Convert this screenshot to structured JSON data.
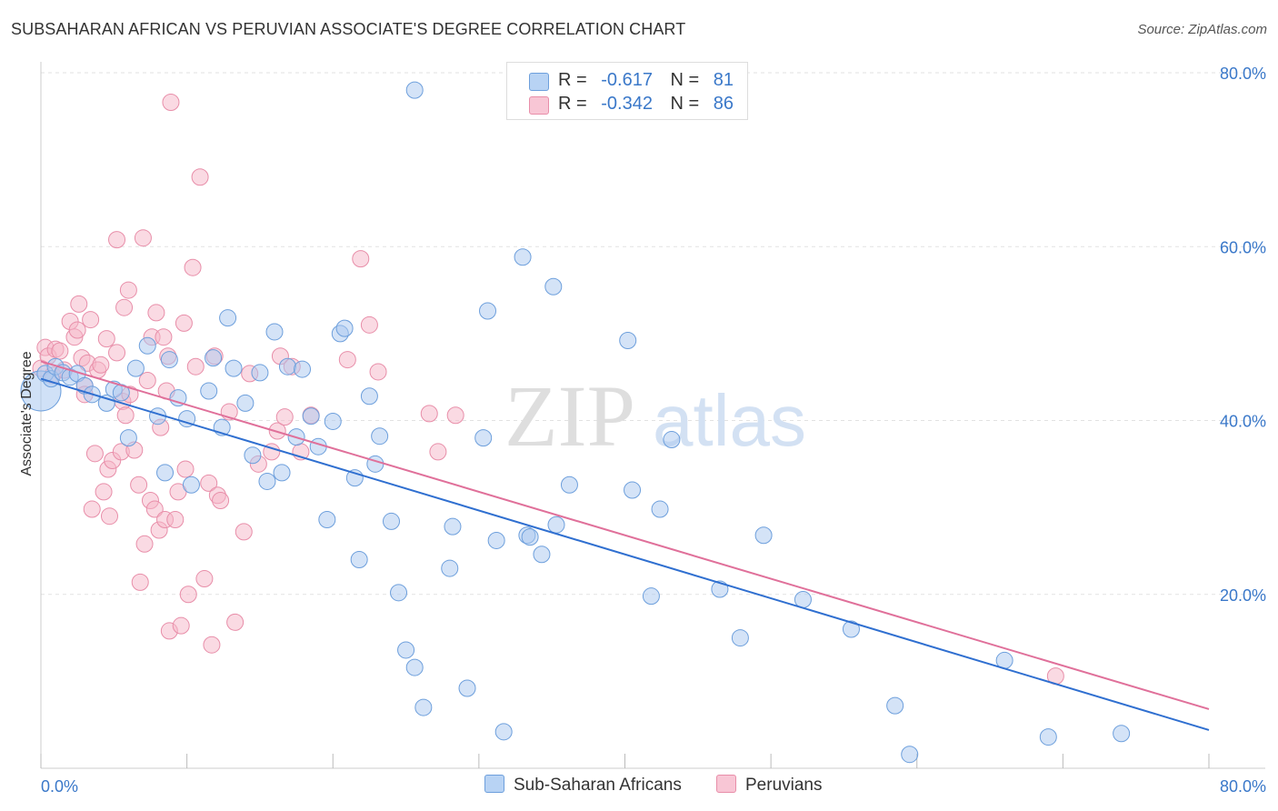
{
  "title": "SUBSAHARAN AFRICAN VS PERUVIAN ASSOCIATE'S DEGREE CORRELATION CHART",
  "source": "Source: ZipAtlas.com",
  "watermark": {
    "zip": "ZIP",
    "atlas": "atlas"
  },
  "legend": {
    "r_label": "R =",
    "n_label": "N =",
    "rows": [
      {
        "r": "-0.617",
        "n": "81",
        "color": "#a9c8f0"
      },
      {
        "r": "-0.342",
        "n": "86",
        "color": "#f6b6c8"
      }
    ]
  },
  "bottom_legend": [
    {
      "label": "Sub-Saharan Africans",
      "color": "#a9c8f0"
    },
    {
      "label": "Peruvians",
      "color": "#f6b6c8"
    }
  ],
  "chart_data": {
    "type": "scatter",
    "title": "SUBSAHARAN AFRICAN VS PERUVIAN ASSOCIATE'S DEGREE CORRELATION CHART",
    "xlabel": "",
    "ylabel": "Associate's Degree",
    "xlim": [
      0,
      80
    ],
    "ylim": [
      0,
      80
    ],
    "x_tick_labels": [
      "0.0%",
      "80.0%"
    ],
    "y_tick_labels": [
      "20.0%",
      "40.0%",
      "60.0%",
      "80.0%"
    ],
    "y_ticks": [
      20,
      40,
      60,
      80
    ],
    "grid": "horizontal dashed",
    "legend_position": "top-center",
    "series": [
      {
        "name": "Sub-Saharan Africans",
        "color": "#a9c8f0",
        "stroke": "#6d9fdc",
        "trend_color": "#2f6fd0",
        "trend": {
          "x": [
            0,
            80
          ],
          "y": [
            44.8,
            4.4
          ]
        },
        "points": [
          [
            0,
            43.4
          ],
          [
            0.3,
            45.4
          ],
          [
            0.7,
            44.8
          ],
          [
            1,
            46.2
          ],
          [
            1.5,
            45.5
          ],
          [
            2,
            45.0
          ],
          [
            2.5,
            45.4
          ],
          [
            3,
            44.0
          ],
          [
            3.5,
            43.0
          ],
          [
            4.5,
            42.0
          ],
          [
            5,
            43.6
          ],
          [
            5.5,
            43.2
          ],
          [
            6,
            38.0
          ],
          [
            6.5,
            46.0
          ],
          [
            7.3,
            48.6
          ],
          [
            8,
            40.5
          ],
          [
            8.5,
            34.0
          ],
          [
            8.8,
            47.0
          ],
          [
            9.4,
            42.6
          ],
          [
            10,
            40.2
          ],
          [
            10.3,
            32.6
          ],
          [
            11.5,
            43.4
          ],
          [
            11.8,
            47.2
          ],
          [
            12.4,
            39.2
          ],
          [
            12.8,
            51.8
          ],
          [
            13.2,
            46.0
          ],
          [
            14,
            42.0
          ],
          [
            14.5,
            36.0
          ],
          [
            15,
            45.5
          ],
          [
            15.5,
            33.0
          ],
          [
            16,
            50.2
          ],
          [
            16.5,
            34.0
          ],
          [
            16.9,
            46.2
          ],
          [
            17.5,
            38.1
          ],
          [
            17.9,
            45.9
          ],
          [
            18.5,
            40.5
          ],
          [
            19,
            37.0
          ],
          [
            19.6,
            28.6
          ],
          [
            20,
            39.9
          ],
          [
            20.5,
            50.0
          ],
          [
            20.8,
            50.6
          ],
          [
            21.5,
            33.4
          ],
          [
            21.8,
            24.0
          ],
          [
            22.5,
            42.8
          ],
          [
            22.9,
            35.0
          ],
          [
            23.2,
            38.2
          ],
          [
            24,
            28.4
          ],
          [
            24.5,
            20.2
          ],
          [
            25,
            13.6
          ],
          [
            25.6,
            11.6
          ],
          [
            25.6,
            78.0
          ],
          [
            26.2,
            7.0
          ],
          [
            28,
            23.0
          ],
          [
            28.2,
            27.8
          ],
          [
            29.2,
            9.2
          ],
          [
            30.3,
            38.0
          ],
          [
            30.6,
            52.6
          ],
          [
            31.2,
            26.2
          ],
          [
            31.7,
            4.2
          ],
          [
            33,
            58.8
          ],
          [
            33.3,
            26.8
          ],
          [
            33.5,
            26.6
          ],
          [
            34.3,
            24.6
          ],
          [
            35.1,
            55.4
          ],
          [
            35.3,
            28.0
          ],
          [
            36.2,
            32.6
          ],
          [
            40.2,
            49.2
          ],
          [
            40.5,
            32.0
          ],
          [
            41.8,
            19.8
          ],
          [
            42.4,
            29.8
          ],
          [
            43.2,
            37.8
          ],
          [
            46.5,
            20.6
          ],
          [
            47.9,
            15.0
          ],
          [
            49.5,
            26.8
          ],
          [
            52.2,
            19.4
          ],
          [
            55.5,
            16.0
          ],
          [
            58.5,
            7.2
          ],
          [
            59.5,
            1.6
          ],
          [
            66,
            12.4
          ],
          [
            69,
            3.6
          ],
          [
            74,
            4.0
          ]
        ]
      },
      {
        "name": "Peruvians",
        "color": "#f6b6c8",
        "stroke": "#e88ea9",
        "trend_color": "#e0709a",
        "trend": {
          "x": [
            0,
            80
          ],
          "y": [
            46.8,
            6.8
          ]
        },
        "points": [
          [
            0,
            46.0
          ],
          [
            0.3,
            48.4
          ],
          [
            0.5,
            47.4
          ],
          [
            0.8,
            45.2
          ],
          [
            1,
            48.2
          ],
          [
            1.3,
            48.0
          ],
          [
            1.6,
            45.8
          ],
          [
            2,
            51.4
          ],
          [
            2.3,
            49.6
          ],
          [
            2.5,
            50.4
          ],
          [
            2.6,
            53.4
          ],
          [
            2.8,
            47.2
          ],
          [
            3,
            44.0
          ],
          [
            3,
            43.0
          ],
          [
            3.2,
            46.6
          ],
          [
            3.4,
            51.6
          ],
          [
            3.5,
            29.8
          ],
          [
            3.7,
            36.2
          ],
          [
            3.9,
            45.8
          ],
          [
            4.1,
            46.4
          ],
          [
            4.3,
            31.8
          ],
          [
            4.5,
            49.4
          ],
          [
            4.6,
            34.4
          ],
          [
            4.7,
            29.0
          ],
          [
            4.9,
            35.4
          ],
          [
            5.2,
            60.8
          ],
          [
            5.2,
            47.8
          ],
          [
            5.5,
            36.4
          ],
          [
            5.6,
            42.2
          ],
          [
            5.7,
            53.0
          ],
          [
            5.8,
            40.6
          ],
          [
            6,
            55.0
          ],
          [
            6.1,
            43.0
          ],
          [
            6.4,
            36.6
          ],
          [
            6.7,
            32.6
          ],
          [
            6.8,
            21.4
          ],
          [
            7,
            61.0
          ],
          [
            7.1,
            25.8
          ],
          [
            7.3,
            44.6
          ],
          [
            7.5,
            30.8
          ],
          [
            7.6,
            49.6
          ],
          [
            7.8,
            29.8
          ],
          [
            7.9,
            52.4
          ],
          [
            8.1,
            27.4
          ],
          [
            8.2,
            39.2
          ],
          [
            8.4,
            49.6
          ],
          [
            8.5,
            28.6
          ],
          [
            8.6,
            43.4
          ],
          [
            8.7,
            47.4
          ],
          [
            8.8,
            15.8
          ],
          [
            8.9,
            76.6
          ],
          [
            9.2,
            28.6
          ],
          [
            9.4,
            31.8
          ],
          [
            9.6,
            16.4
          ],
          [
            9.8,
            51.2
          ],
          [
            9.9,
            34.4
          ],
          [
            10.1,
            20.0
          ],
          [
            10.4,
            57.6
          ],
          [
            10.6,
            46.2
          ],
          [
            10.9,
            68.0
          ],
          [
            11.2,
            21.8
          ],
          [
            11.5,
            32.8
          ],
          [
            11.7,
            14.2
          ],
          [
            11.9,
            47.4
          ],
          [
            12.1,
            31.4
          ],
          [
            12.3,
            30.8
          ],
          [
            12.9,
            41.0
          ],
          [
            13.3,
            16.8
          ],
          [
            13.9,
            27.2
          ],
          [
            14.3,
            45.4
          ],
          [
            14.9,
            35.0
          ],
          [
            15.8,
            36.4
          ],
          [
            16.2,
            38.8
          ],
          [
            16.4,
            47.4
          ],
          [
            16.7,
            40.4
          ],
          [
            17.2,
            46.2
          ],
          [
            17.8,
            36.4
          ],
          [
            18.5,
            40.6
          ],
          [
            21,
            47.0
          ],
          [
            21.9,
            58.6
          ],
          [
            22.5,
            51.0
          ],
          [
            23.1,
            45.6
          ],
          [
            26.6,
            40.8
          ],
          [
            27.2,
            36.4
          ],
          [
            28.4,
            40.6
          ],
          [
            69.5,
            10.6
          ]
        ]
      }
    ]
  }
}
